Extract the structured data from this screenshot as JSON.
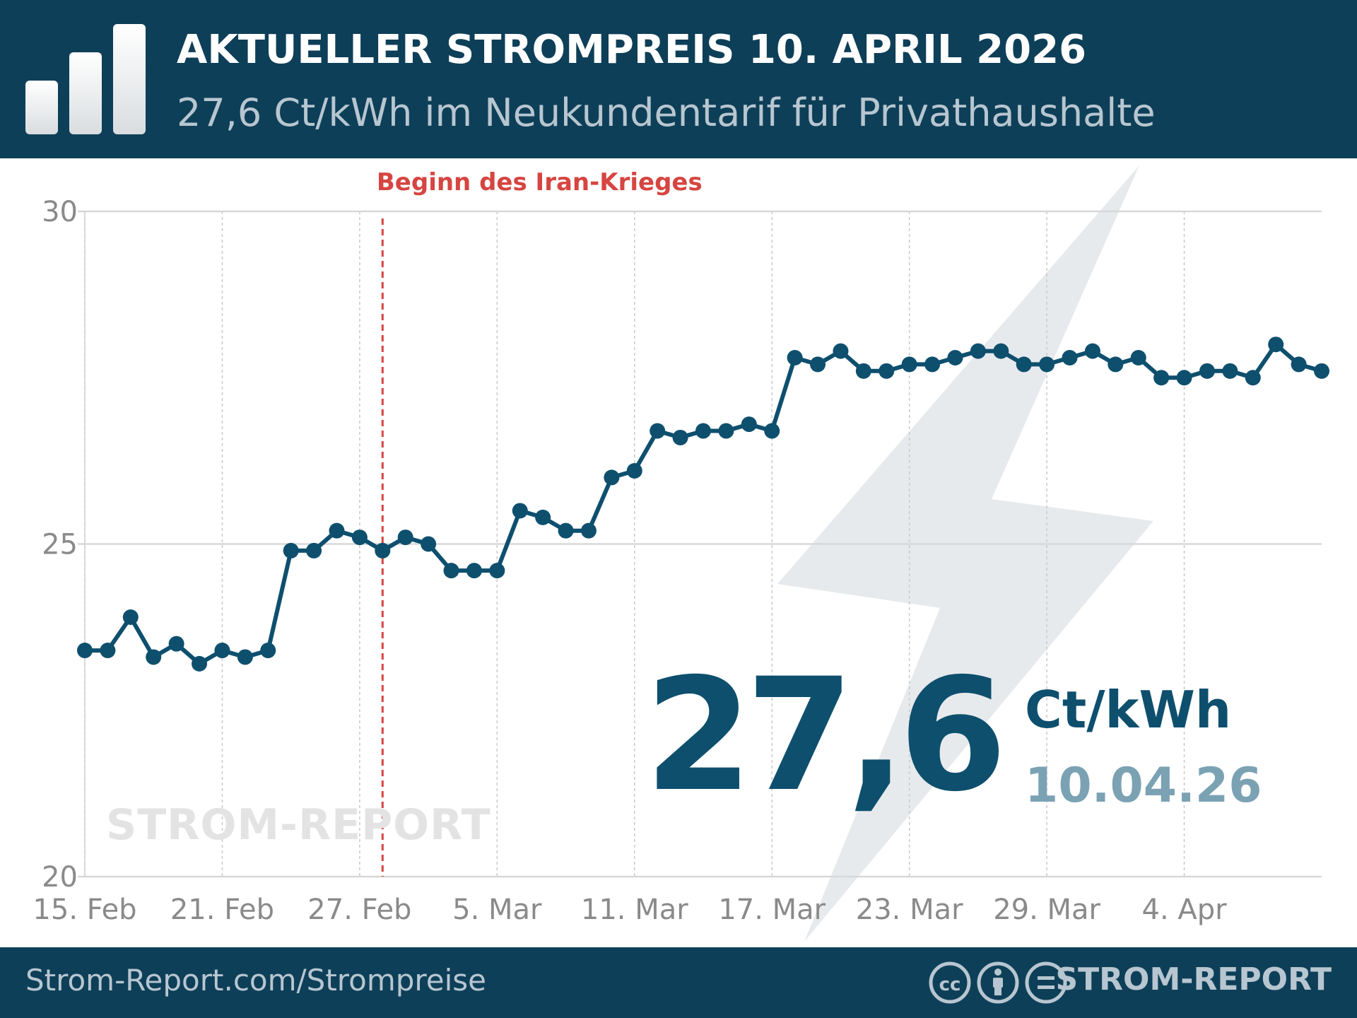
{
  "header": {
    "title": "AKTUELLER STROMPREIS 10. APRIL 2026",
    "subtitle": "27,6 Ct/kWh im Neukundentarif für Privathaushalte",
    "logo_icon": "bar-chart-icon"
  },
  "highlight": {
    "value": "27,6",
    "unit": "Ct/kWh",
    "date": "10.04.26"
  },
  "watermark": "STROM-REPORT",
  "footer": {
    "url": "Strom-Report.com/Strompreise",
    "brand": "STROM-REPORT",
    "license_icons": [
      "cc-icon",
      "attribution-icon",
      "no-derivatives-icon"
    ]
  },
  "colors": {
    "header_bg": "#0e3f58",
    "line": "#0e4f6e",
    "event": "#d64541",
    "bolt": "#e7eaed"
  },
  "chart_data": {
    "type": "line",
    "title": "",
    "xlabel": "",
    "ylabel": "",
    "ylim": [
      20,
      30
    ],
    "yticks": [
      20,
      25,
      30
    ],
    "ytick_labels": [
      "20",
      "25",
      "30"
    ],
    "xlim": [
      "2026-02-15",
      "2026-04-10"
    ],
    "xticks": [
      "2026-02-15",
      "2026-02-21",
      "2026-02-27",
      "2026-03-05",
      "2026-03-11",
      "2026-03-17",
      "2026-03-23",
      "2026-03-29",
      "2026-04-04"
    ],
    "xtick_labels": [
      "15. Feb",
      "21. Feb",
      "27. Feb",
      "5. Mar",
      "11. Mar",
      "17. Mar",
      "23. Mar",
      "29. Mar",
      "4. Apr"
    ],
    "grid": true,
    "annotation": {
      "x": "2026-02-28",
      "label": "Beginn des Iran-Krieges"
    },
    "series": [
      {
        "x": [
          "2026-02-15",
          "2026-02-16",
          "2026-02-17",
          "2026-02-18",
          "2026-02-19",
          "2026-02-20",
          "2026-02-21",
          "2026-02-22",
          "2026-02-23",
          "2026-02-24",
          "2026-02-25",
          "2026-02-26",
          "2026-02-27",
          "2026-02-28",
          "2026-03-01",
          "2026-03-02",
          "2026-03-03",
          "2026-03-04",
          "2026-03-05",
          "2026-03-06",
          "2026-03-07",
          "2026-03-08",
          "2026-03-09",
          "2026-03-10",
          "2026-03-11",
          "2026-03-12",
          "2026-03-13",
          "2026-03-14",
          "2026-03-15",
          "2026-03-16",
          "2026-03-17",
          "2026-03-18",
          "2026-03-19",
          "2026-03-20",
          "2026-03-21",
          "2026-03-22",
          "2026-03-23",
          "2026-03-24",
          "2026-03-25",
          "2026-03-26",
          "2026-03-27",
          "2026-03-28",
          "2026-03-29",
          "2026-03-30",
          "2026-03-31",
          "2026-04-01",
          "2026-04-02",
          "2026-04-03",
          "2026-04-04",
          "2026-04-05",
          "2026-04-06",
          "2026-04-07",
          "2026-04-08",
          "2026-04-09",
          "2026-04-10"
        ],
        "values": [
          23.4,
          23.4,
          23.9,
          23.3,
          23.5,
          23.2,
          23.4,
          23.3,
          23.4,
          24.9,
          24.9,
          25.2,
          25.1,
          24.9,
          25.1,
          25.0,
          24.6,
          24.6,
          24.6,
          25.5,
          25.4,
          25.2,
          25.2,
          26.0,
          26.1,
          26.7,
          26.6,
          26.7,
          26.7,
          26.8,
          26.7,
          27.8,
          27.7,
          27.9,
          27.6,
          27.6,
          27.7,
          27.7,
          27.8,
          27.9,
          27.9,
          27.7,
          27.7,
          27.8,
          27.9,
          27.7,
          27.8,
          27.5,
          27.5,
          27.6,
          27.6,
          27.5,
          28.0,
          27.7,
          27.6
        ]
      }
    ]
  }
}
